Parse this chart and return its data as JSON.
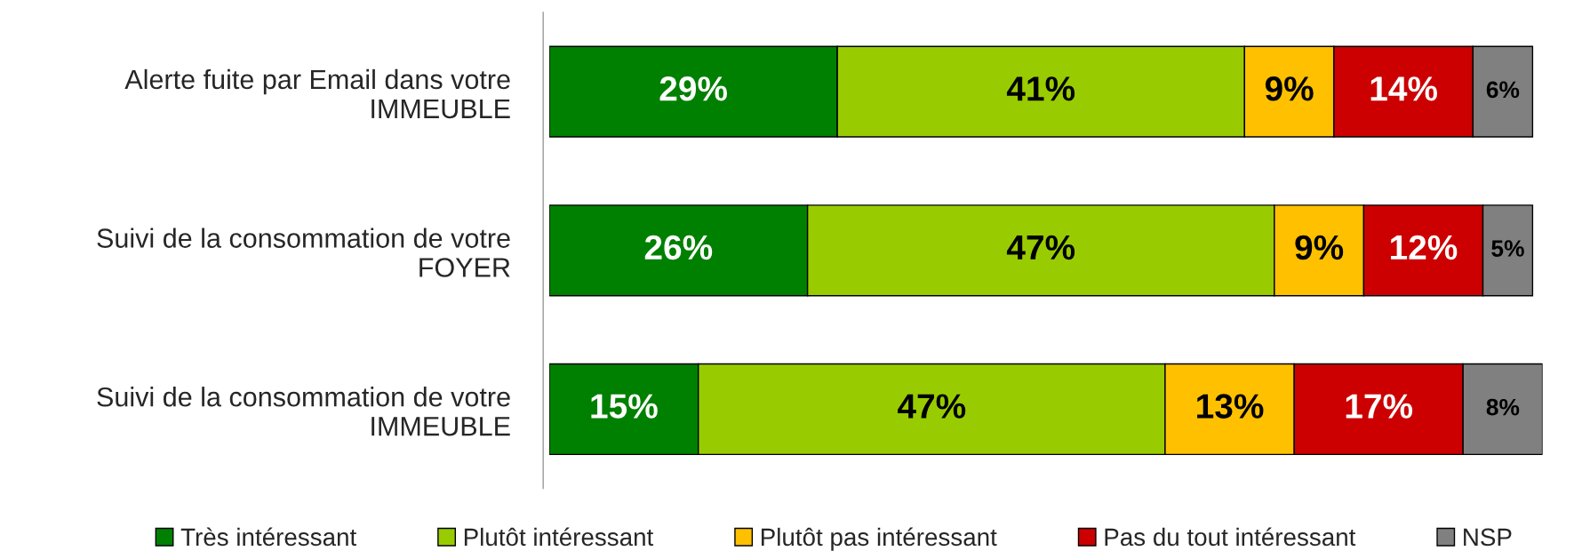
{
  "chart_data": {
    "type": "bar",
    "orientation": "horizontal",
    "stacked": true,
    "legend": "bottom",
    "grid": false,
    "tick_labels": "y",
    "categories": [
      "Alerte fuite par Email dans votre\nIMMEUBLE",
      "Suivi de la consommation de votre\nFOYER",
      "Suivi de la consommation de votre\nIMMEUBLE"
    ],
    "series": [
      {
        "name": "Très intéressant",
        "color": "#008000",
        "values": [
          29,
          26,
          15
        ],
        "value_labels": [
          "29%",
          "26%",
          "15%"
        ]
      },
      {
        "name": "Plutôt intéressant",
        "color": "#99cc00",
        "values": [
          41,
          47,
          47
        ],
        "value_labels": [
          "41%",
          "47%",
          "47%"
        ]
      },
      {
        "name": "Plutôt pas intéressant",
        "color": "#ffc000",
        "values": [
          9,
          9,
          13
        ],
        "value_labels": [
          "9%",
          "9%",
          "13%"
        ]
      },
      {
        "name": "Pas du tout intéressant",
        "color": "#cc0000",
        "values": [
          14,
          12,
          17
        ],
        "value_labels": [
          "14%",
          "12%",
          "17%"
        ]
      },
      {
        "name": "NSP",
        "color": "#808080",
        "values": [
          6,
          5,
          8
        ],
        "value_labels": [
          "6%",
          "5%",
          "8%"
        ]
      }
    ]
  }
}
